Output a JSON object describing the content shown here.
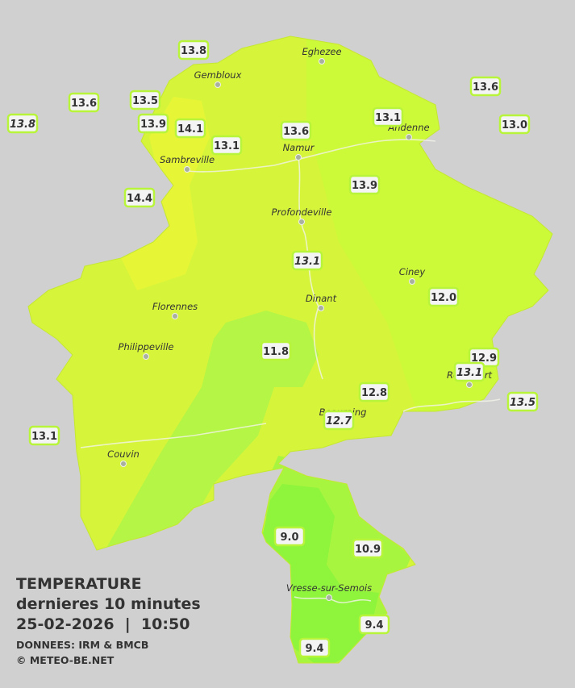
{
  "map": {
    "towns": [
      "Eghezee",
      "Gembloux",
      "Andenne",
      "Namur",
      "Sambreville",
      "Profondeville",
      "Ciney",
      "Florennes",
      "Dinant",
      "Philippeville",
      "Rochefort",
      "Beauraing",
      "Couvin",
      "Vresse-sur-Semois"
    ],
    "stations": [
      {
        "value": "13.8"
      },
      {
        "value": "13.6"
      },
      {
        "value": "13.5"
      },
      {
        "value": "13.8",
        "italic": true
      },
      {
        "value": "13.9"
      },
      {
        "value": "14.1"
      },
      {
        "value": "13.1"
      },
      {
        "value": "13.6"
      },
      {
        "value": "13.1"
      },
      {
        "value": "13.6"
      },
      {
        "value": "13.0"
      },
      {
        "value": "13.9"
      },
      {
        "value": "14.4"
      },
      {
        "value": "13.1",
        "italic": true
      },
      {
        "value": "12.0"
      },
      {
        "value": "11.8"
      },
      {
        "value": "12.9"
      },
      {
        "value": "13.1",
        "italic": true
      },
      {
        "value": "13.5",
        "italic": true
      },
      {
        "value": "12.8"
      },
      {
        "value": "12.7",
        "italic": true
      },
      {
        "value": "13.1"
      },
      {
        "value": "9.0"
      },
      {
        "value": "10.9"
      },
      {
        "value": "9.4"
      },
      {
        "value": "9.4"
      }
    ],
    "legend": {
      "title": "TEMPERATURE",
      "subtitle": "dernieres 10 minutes",
      "datetime": "25-02-2026  |  10:50",
      "source": "DONNEES: IRM & BMCB",
      "copyright": "© METEO-BE.NET"
    }
  }
}
